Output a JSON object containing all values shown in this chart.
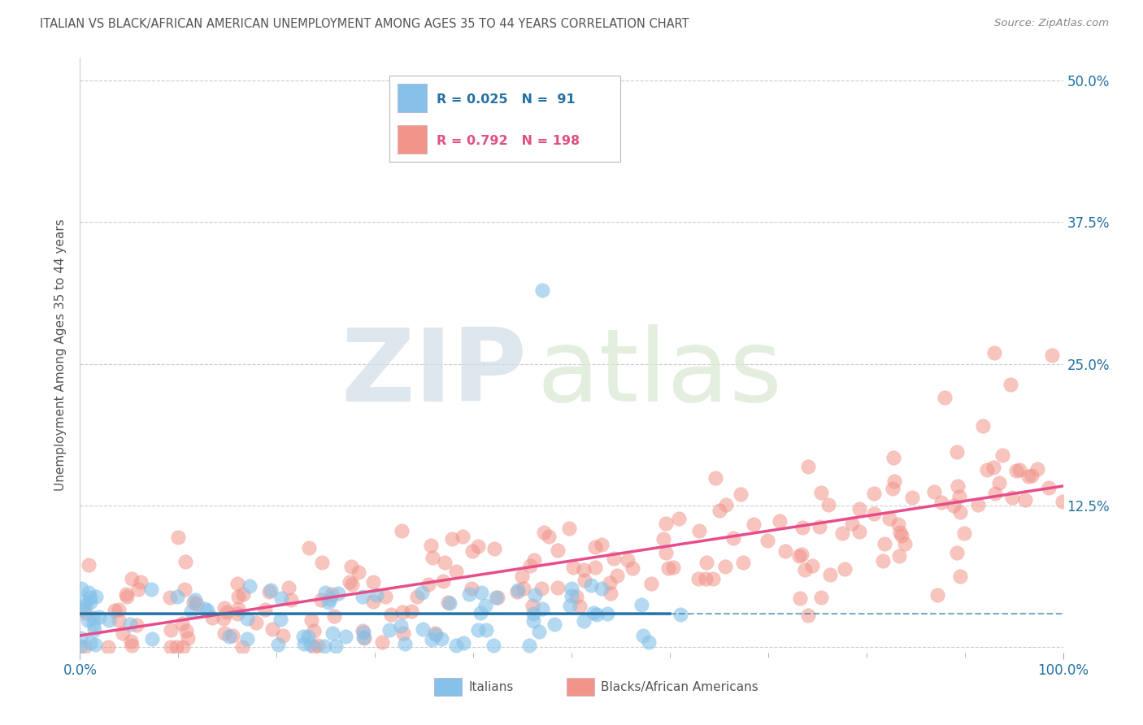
{
  "title": "ITALIAN VS BLACK/AFRICAN AMERICAN UNEMPLOYMENT AMONG AGES 35 TO 44 YEARS CORRELATION CHART",
  "source": "Source: ZipAtlas.com",
  "ylabel": "Unemployment Among Ages 35 to 44 years",
  "xlim": [
    0,
    1.0
  ],
  "ylim": [
    -0.005,
    0.52
  ],
  "yticks": [
    0,
    0.125,
    0.25,
    0.375,
    0.5
  ],
  "ytick_labels": [
    "",
    "12.5%",
    "25.0%",
    "37.5%",
    "50.0%"
  ],
  "xticks": [
    0,
    1.0
  ],
  "xtick_labels": [
    "0.0%",
    "100.0%"
  ],
  "italian_R": 0.025,
  "italian_N": 91,
  "black_R": 0.792,
  "black_N": 198,
  "italian_color": "#85c1e9",
  "black_color": "#f1948a",
  "italian_line_color": "#2471a3",
  "black_line_color": "#e74c8b",
  "legend_R_color": "#2471a3",
  "background_color": "#ffffff",
  "grid_color": "#c8c8c8",
  "title_color": "#555555",
  "axis_label_color": "#555555",
  "tick_label_color": "#2471a3",
  "source_color": "#888888",
  "watermark_zip_color": "#d5dfe8",
  "watermark_atlas_color": "#dde8d0"
}
